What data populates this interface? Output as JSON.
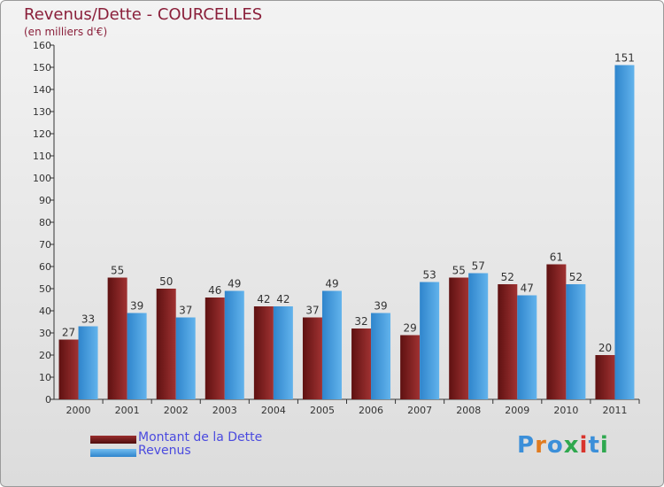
{
  "chart_data": {
    "type": "bar",
    "title": "Revenus/Dette - COURCELLES",
    "subtitle": "(en milliers d'€)",
    "categories": [
      "2000",
      "2001",
      "2002",
      "2003",
      "2004",
      "2005",
      "2006",
      "2007",
      "2008",
      "2009",
      "2010",
      "2011"
    ],
    "series": [
      {
        "name": "Montant de la Dette",
        "color": "#7a1d1d",
        "values": [
          27,
          55,
          50,
          46,
          42,
          37,
          32,
          29,
          55,
          52,
          61,
          20
        ]
      },
      {
        "name": "Revenus",
        "color": "#4aa0e0",
        "values": [
          33,
          39,
          37,
          49,
          42,
          49,
          39,
          53,
          57,
          47,
          52,
          151
        ]
      }
    ],
    "ylim": [
      0,
      160
    ],
    "yticks": [
      0,
      10,
      20,
      30,
      40,
      50,
      60,
      70,
      80,
      90,
      100,
      110,
      120,
      130,
      140,
      150,
      160
    ],
    "grid": false,
    "legend_position": "bottom-left"
  },
  "logo": {
    "text": "Proxiti",
    "letter_colors": [
      "#3b8fd9",
      "#e07b1f",
      "#3b8fd9",
      "#2fa84f",
      "#d8342c",
      "#3b8fd9",
      "#2fa84f"
    ]
  }
}
